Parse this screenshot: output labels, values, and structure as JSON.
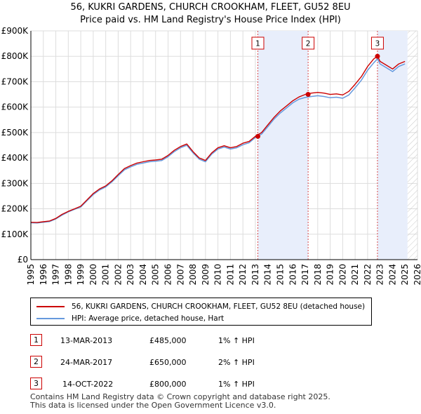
{
  "chart_data": {
    "type": "line",
    "title": "56, KUKRI GARDENS, CHURCH CROOKHAM, FLEET, GU52 8EU",
    "subtitle": "Price paid vs. HM Land Registry's House Price Index (HPI)",
    "x_range": [
      1995,
      2026
    ],
    "y_range": [
      0,
      900000
    ],
    "x_ticks": [
      "1995",
      "1996",
      "1997",
      "1998",
      "1999",
      "2000",
      "2001",
      "2002",
      "2003",
      "2004",
      "2005",
      "2006",
      "2007",
      "2008",
      "2009",
      "2010",
      "2011",
      "2012",
      "2013",
      "2014",
      "2015",
      "2016",
      "2017",
      "2018",
      "2019",
      "2020",
      "2021",
      "2022",
      "2023",
      "2024",
      "2025",
      "2026"
    ],
    "y_ticks": [
      {
        "value": 0,
        "label": "£0"
      },
      {
        "value": 100000,
        "label": "£100K"
      },
      {
        "value": 200000,
        "label": "£200K"
      },
      {
        "value": 300000,
        "label": "£300K"
      },
      {
        "value": 400000,
        "label": "£400K"
      },
      {
        "value": 500000,
        "label": "£500K"
      },
      {
        "value": 600000,
        "label": "£600K"
      },
      {
        "value": 700000,
        "label": "£700K"
      },
      {
        "value": 800000,
        "label": "£800K"
      },
      {
        "value": 900000,
        "label": "£900K"
      }
    ],
    "series": [
      {
        "name": "56, KUKRI GARDENS, CHURCH CROOKHAM, FLEET, GU52 8EU (detached house)",
        "color": "#cc0000",
        "x": [
          1995.0,
          1995.5,
          1996.0,
          1996.5,
          1997.0,
          1997.5,
          1998.0,
          1998.5,
          1999.0,
          1999.5,
          2000.0,
          2000.5,
          2001.0,
          2001.5,
          2002.0,
          2002.5,
          2003.0,
          2003.5,
          2004.0,
          2004.5,
          2005.0,
          2005.5,
          2006.0,
          2006.5,
          2007.0,
          2007.5,
          2008.0,
          2008.5,
          2009.0,
          2009.5,
          2010.0,
          2010.5,
          2011.0,
          2011.5,
          2012.0,
          2012.5,
          2013.0,
          2013.5,
          2014.0,
          2014.5,
          2015.0,
          2015.5,
          2016.0,
          2016.5,
          2017.0,
          2017.5,
          2018.0,
          2018.5,
          2019.0,
          2019.5,
          2020.0,
          2020.5,
          2021.0,
          2021.5,
          2022.0,
          2022.5,
          2022.8,
          2023.0,
          2023.5,
          2024.0,
          2024.5,
          2025.0
        ],
        "values": [
          147000,
          146000,
          149000,
          152000,
          162000,
          178000,
          190000,
          200000,
          210000,
          235000,
          260000,
          278000,
          290000,
          310000,
          335000,
          358000,
          370000,
          380000,
          385000,
          390000,
          392000,
          395000,
          410000,
          430000,
          445000,
          455000,
          425000,
          400000,
          390000,
          420000,
          440000,
          448000,
          440000,
          445000,
          458000,
          465000,
          485000,
          500000,
          530000,
          560000,
          585000,
          605000,
          625000,
          640000,
          650000,
          655000,
          658000,
          655000,
          650000,
          652000,
          648000,
          662000,
          690000,
          720000,
          760000,
          790000,
          800000,
          780000,
          765000,
          750000,
          770000,
          780000
        ]
      },
      {
        "name": "HPI: Average price, detached house, Hart",
        "color": "#6699dd",
        "x": [
          1995.0,
          1995.5,
          1996.0,
          1996.5,
          1997.0,
          1997.5,
          1998.0,
          1998.5,
          1999.0,
          1999.5,
          2000.0,
          2000.5,
          2001.0,
          2001.5,
          2002.0,
          2002.5,
          2003.0,
          2003.5,
          2004.0,
          2004.5,
          2005.0,
          2005.5,
          2006.0,
          2006.5,
          2007.0,
          2007.5,
          2008.0,
          2008.5,
          2009.0,
          2009.5,
          2010.0,
          2010.5,
          2011.0,
          2011.5,
          2012.0,
          2012.5,
          2013.0,
          2013.5,
          2014.0,
          2014.5,
          2015.0,
          2015.5,
          2016.0,
          2016.5,
          2017.0,
          2017.5,
          2018.0,
          2018.5,
          2019.0,
          2019.5,
          2020.0,
          2020.5,
          2021.0,
          2021.5,
          2022.0,
          2022.5,
          2022.8,
          2023.0,
          2023.5,
          2024.0,
          2024.5,
          2025.0
        ],
        "values": [
          145000,
          144000,
          147000,
          150000,
          160000,
          175000,
          188000,
          198000,
          207000,
          232000,
          256000,
          274000,
          286000,
          306000,
          330000,
          353000,
          365000,
          375000,
          380000,
          385000,
          387000,
          390000,
          405000,
          425000,
          440000,
          450000,
          420000,
          395000,
          385000,
          415000,
          435000,
          443000,
          435000,
          440000,
          452000,
          460000,
          480000,
          494000,
          523000,
          553000,
          577000,
          597000,
          617000,
          631000,
          638000,
          642000,
          645000,
          642000,
          637000,
          639000,
          635000,
          648000,
          676000,
          706000,
          745000,
          775000,
          790000,
          770000,
          755000,
          740000,
          760000,
          770000
        ]
      }
    ],
    "sales": [
      {
        "label": "1",
        "x": 2013.2,
        "value": 485000
      },
      {
        "label": "2",
        "x": 2017.23,
        "value": 650000
      },
      {
        "label": "3",
        "x": 2022.79,
        "value": 800000
      }
    ],
    "shaded_ranges": [
      [
        2013.2,
        2017.23
      ],
      [
        2022.79,
        2025.2
      ]
    ],
    "hatch_from": 2025.2
  },
  "legend": {
    "property": "56, KUKRI GARDENS, CHURCH CROOKHAM, FLEET, GU52 8EU (detached house)",
    "hpi": "HPI: Average price, detached house, Hart"
  },
  "transactions": [
    {
      "num": "1",
      "date": "13-MAR-2013",
      "price": "£485,000",
      "change": "1% ↑ HPI"
    },
    {
      "num": "2",
      "date": "24-MAR-2017",
      "price": "£650,000",
      "change": "2% ↑ HPI"
    },
    {
      "num": "3",
      "date": "14-OCT-2022",
      "price": "£800,000",
      "change": "1% ↑ HPI"
    }
  ],
  "footer": {
    "line1": "Contains HM Land Registry data © Crown copyright and database right 2025.",
    "line2": "This data is licensed under the Open Government Licence v3.0."
  }
}
